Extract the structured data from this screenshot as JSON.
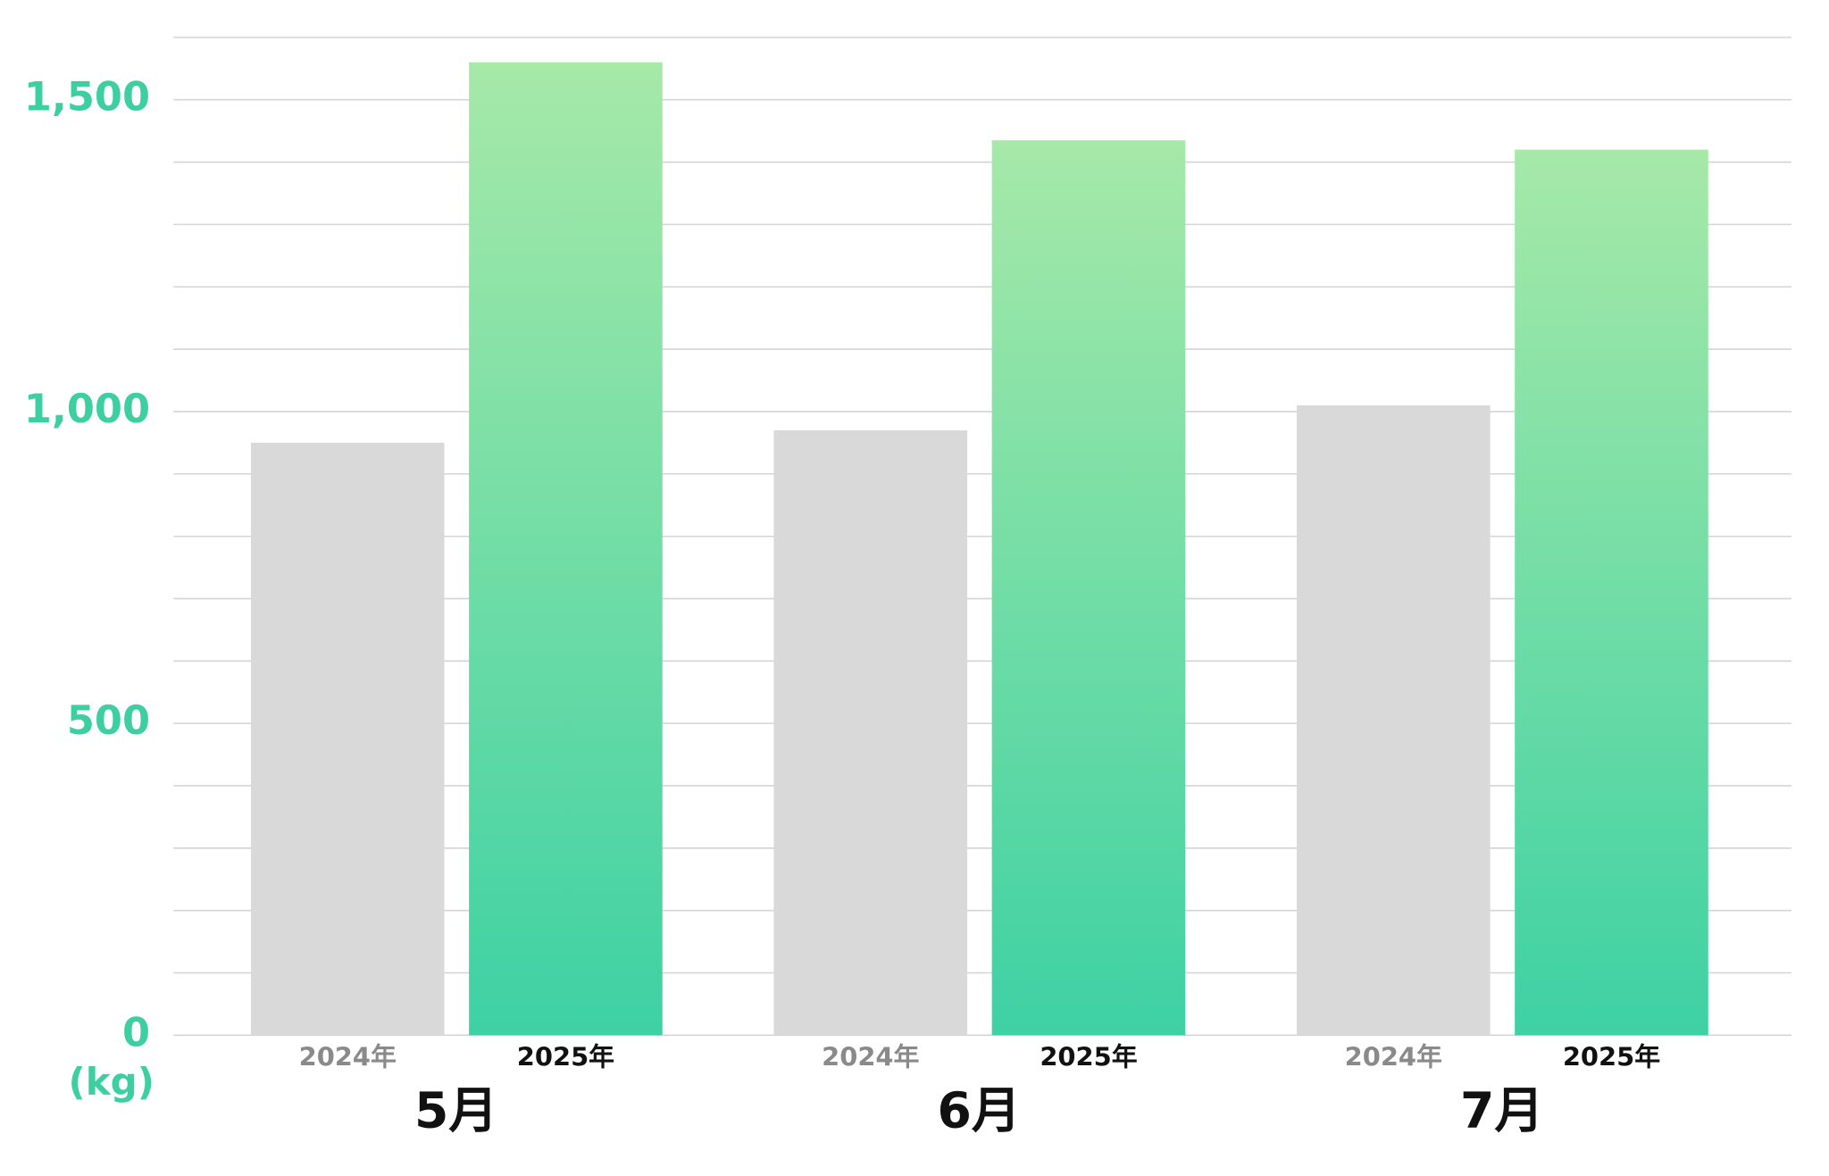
{
  "chart_data": {
    "type": "bar",
    "categories": [
      "5月",
      "6月",
      "7月"
    ],
    "series": [
      {
        "name": "2024年",
        "color": "#d9d9d9",
        "values": [
          950,
          970,
          1010
        ]
      },
      {
        "name": "2025年",
        "color": "#3ed1a4",
        "gradient_top": "#a6e9a8",
        "values": [
          1560,
          1435,
          1420
        ]
      }
    ],
    "y_label": "(kg)",
    "ylim": [
      0,
      1600
    ],
    "yticks": [
      0,
      500,
      {
        "value": 1000,
        "label": "1,000"
      },
      {
        "value": 1500,
        "label": "1,500"
      }
    ],
    "grid_lines": [
      0,
      100,
      200,
      300,
      400,
      500,
      600,
      700,
      800,
      900,
      1000,
      1100,
      1200,
      1300,
      1400,
      1500,
      1600
    ],
    "grid": true
  }
}
